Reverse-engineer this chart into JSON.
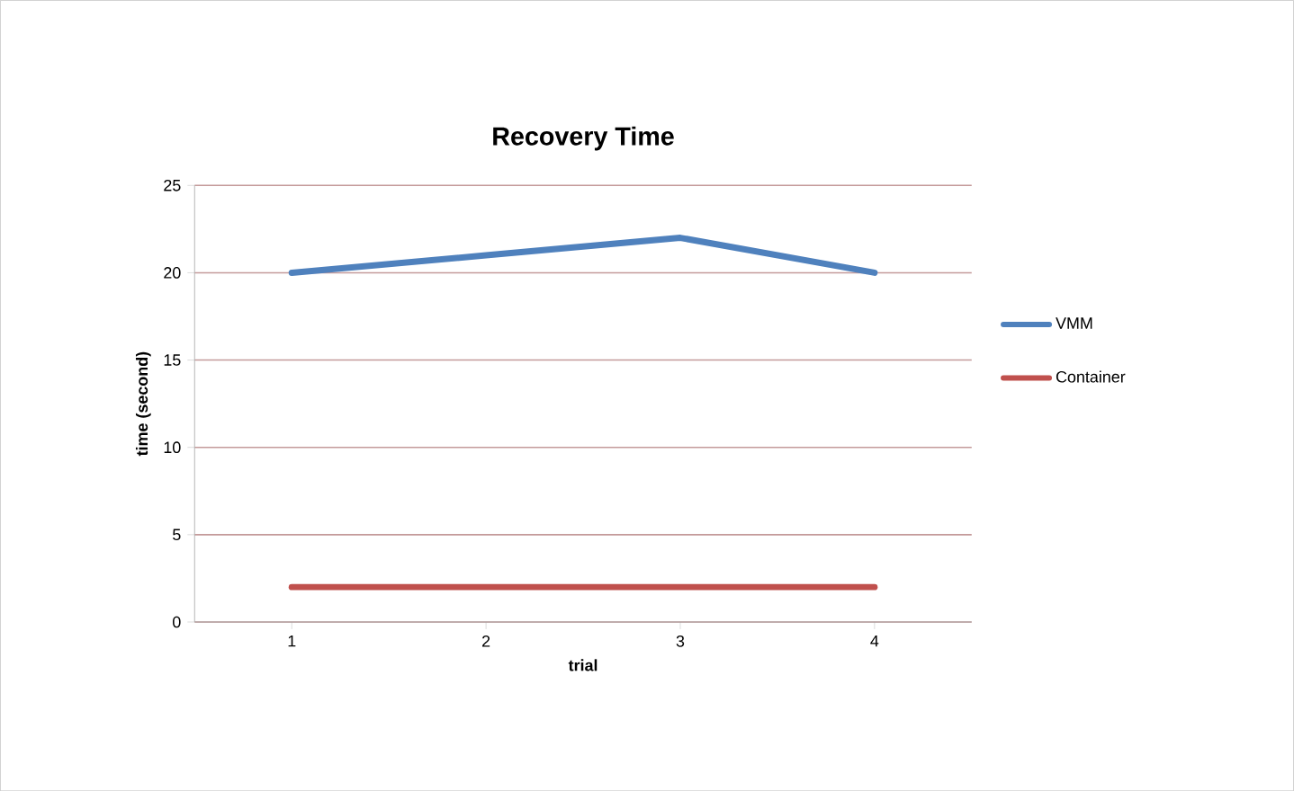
{
  "chart_data": {
    "type": "line",
    "title": "Recovery Time",
    "xlabel": "trial",
    "ylabel": "time (second)",
    "categories": [
      "1",
      "2",
      "3",
      "4"
    ],
    "series": [
      {
        "name": "VMM",
        "color": "#4f81bd",
        "values": [
          20,
          21,
          22,
          20
        ]
      },
      {
        "name": "Container",
        "color": "#c0504d",
        "values": [
          2,
          2,
          2,
          2
        ]
      }
    ],
    "ylim": [
      0,
      25
    ],
    "yticks": [
      0,
      5,
      10,
      15,
      20,
      25
    ],
    "grid": "y",
    "legend": "right",
    "marker": "none",
    "line_style": "solid"
  }
}
